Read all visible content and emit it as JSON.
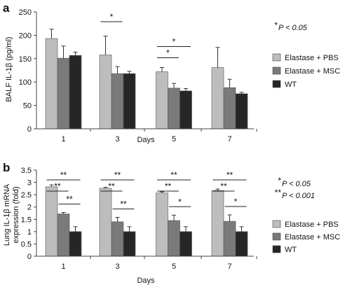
{
  "colors": {
    "elastase_pbs": "#bdbdbd",
    "elastase_msc": "#7a7a7a",
    "wt": "#262626",
    "axis": "#444444"
  },
  "chart_data": [
    {
      "panel_label": "a",
      "type": "bar",
      "categories": [
        "1",
        "3",
        "5",
        "7"
      ],
      "xlabel": "Days",
      "ylabel": "BALF IL-1β (pg/ml)",
      "ylim": [
        0,
        250
      ],
      "yticks": [
        0,
        50,
        100,
        150,
        200,
        250
      ],
      "series": [
        {
          "name": "Elastase + PBS",
          "values": [
            193,
            158,
            122,
            131
          ],
          "errors": [
            20,
            40,
            9,
            43
          ]
        },
        {
          "name": "Elastase + MSC",
          "values": [
            151,
            118,
            87,
            88
          ],
          "errors": [
            26,
            15,
            10,
            18
          ]
        },
        {
          "name": "WT",
          "values": [
            157,
            118,
            81,
            75
          ],
          "errors": [
            7,
            5,
            5,
            3
          ]
        }
      ],
      "significance": [
        {
          "category": "3",
          "from_series": 0,
          "to_series": 1,
          "label": "*"
        },
        {
          "category": "5",
          "from_series": 0,
          "to_series": 1,
          "label": "*"
        },
        {
          "category": "5",
          "from_series": 0,
          "to_series": 2,
          "label": "*"
        }
      ],
      "annotations": [
        {
          "stars": "*",
          "text": "P < 0.05"
        }
      ],
      "legend_position": "right"
    },
    {
      "panel_label": "b",
      "type": "bar",
      "categories": [
        "1",
        "3",
        "5",
        "7"
      ],
      "xlabel": "Days",
      "ylabel_lines": [
        "Lung IL-1β mRNA",
        "expression (fold)"
      ],
      "ylim": [
        0,
        3.5
      ],
      "yticks": [
        0,
        0.5,
        1,
        1.5,
        2,
        2.5,
        3,
        3.5
      ],
      "series": [
        {
          "name": "Elastase + PBS",
          "values": [
            2.82,
            2.76,
            2.57,
            2.67
          ],
          "errors": [
            0.08,
            0.04,
            0.05,
            0.06
          ]
        },
        {
          "name": "Elastase + MSC",
          "values": [
            1.72,
            1.4,
            1.45,
            1.42
          ],
          "errors": [
            0.06,
            0.18,
            0.22,
            0.26
          ]
        },
        {
          "name": "WT",
          "values": [
            1.0,
            1.0,
            1.0,
            1.0
          ],
          "errors": [
            0.2,
            0.2,
            0.2,
            0.2
          ]
        }
      ],
      "significance": [
        {
          "category": "1",
          "from_series": 0,
          "to_series": 2,
          "label": "**"
        },
        {
          "category": "1",
          "from_series": 0,
          "to_series": 1,
          "label": "**"
        },
        {
          "category": "1",
          "from_series": 1,
          "to_series": 2,
          "label": "**"
        },
        {
          "category": "3",
          "from_series": 0,
          "to_series": 2,
          "label": "**"
        },
        {
          "category": "3",
          "from_series": 0,
          "to_series": 1,
          "label": "**"
        },
        {
          "category": "3",
          "from_series": 1,
          "to_series": 2,
          "label": "**"
        },
        {
          "category": "5",
          "from_series": 0,
          "to_series": 2,
          "label": "**"
        },
        {
          "category": "5",
          "from_series": 0,
          "to_series": 1,
          "label": "**"
        },
        {
          "category": "5",
          "from_series": 1,
          "to_series": 2,
          "label": "*"
        },
        {
          "category": "7",
          "from_series": 0,
          "to_series": 2,
          "label": "**"
        },
        {
          "category": "7",
          "from_series": 0,
          "to_series": 1,
          "label": "**"
        },
        {
          "category": "7",
          "from_series": 1,
          "to_series": 2,
          "label": "*"
        }
      ],
      "annotations": [
        {
          "stars": "*",
          "text": "P < 0.05"
        },
        {
          "stars": "**",
          "text": "P < 0.001"
        }
      ],
      "legend_position": "right"
    }
  ]
}
